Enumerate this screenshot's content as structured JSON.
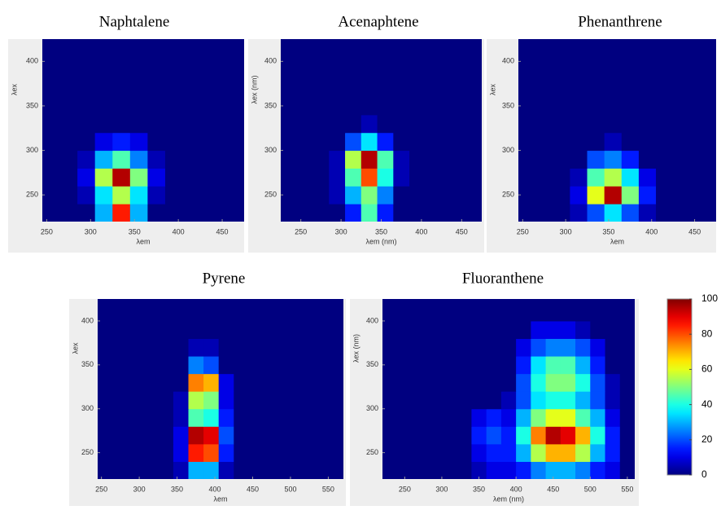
{
  "chart_data": [
    {
      "type": "heatmap",
      "title": "Naphtalene",
      "xlabel": "λem",
      "ylabel": "λex",
      "xlim": [
        245,
        475
      ],
      "ylim": [
        220,
        425
      ],
      "xticks": [
        250,
        300,
        350,
        400,
        450
      ],
      "yticks": [
        250,
        300,
        350,
        400
      ],
      "x": [
        255,
        275,
        295,
        315,
        335,
        355,
        375,
        395,
        415,
        435,
        455
      ],
      "y": [
        230,
        250,
        270,
        290,
        310,
        330,
        350,
        370,
        390,
        410
      ],
      "z": [
        [
          0,
          0,
          0,
          30,
          85,
          30,
          0,
          0,
          0,
          0,
          0
        ],
        [
          0,
          0,
          5,
          35,
          55,
          35,
          5,
          0,
          0,
          0,
          0
        ],
        [
          0,
          0,
          10,
          55,
          95,
          50,
          10,
          0,
          0,
          0,
          0
        ],
        [
          0,
          0,
          5,
          30,
          45,
          25,
          5,
          0,
          0,
          0,
          0
        ],
        [
          0,
          0,
          0,
          10,
          15,
          10,
          0,
          0,
          0,
          0,
          0
        ],
        [
          0,
          0,
          0,
          0,
          0,
          0,
          0,
          0,
          0,
          0,
          0
        ],
        [
          0,
          0,
          0,
          0,
          0,
          0,
          0,
          0,
          0,
          0,
          0
        ],
        [
          0,
          0,
          0,
          0,
          0,
          0,
          0,
          0,
          0,
          0,
          0
        ],
        [
          0,
          0,
          0,
          0,
          0,
          0,
          0,
          0,
          0,
          0,
          0
        ],
        [
          0,
          0,
          0,
          0,
          0,
          0,
          0,
          0,
          0,
          0,
          0
        ]
      ]
    },
    {
      "type": "heatmap",
      "title": "Acenaphtene",
      "xlabel": "λem (nm)",
      "ylabel": "λex (nm)",
      "xlim": [
        225,
        475
      ],
      "ylim": [
        220,
        425
      ],
      "xticks": [
        250,
        300,
        350,
        400,
        450
      ],
      "yticks": [
        250,
        300,
        350,
        400
      ],
      "x": [
        235,
        255,
        275,
        295,
        315,
        335,
        355,
        375,
        395,
        415,
        435,
        455
      ],
      "y": [
        230,
        250,
        270,
        290,
        310,
        330,
        350,
        370,
        390,
        410
      ],
      "z": [
        [
          0,
          0,
          0,
          0,
          15,
          45,
          15,
          0,
          0,
          0,
          0,
          0
        ],
        [
          0,
          0,
          0,
          5,
          30,
          50,
          25,
          0,
          0,
          0,
          0,
          0
        ],
        [
          0,
          0,
          0,
          5,
          45,
          80,
          40,
          5,
          0,
          0,
          0,
          0
        ],
        [
          0,
          0,
          0,
          5,
          55,
          95,
          45,
          5,
          0,
          0,
          0,
          0
        ],
        [
          0,
          0,
          0,
          0,
          20,
          35,
          15,
          0,
          0,
          0,
          0,
          0
        ],
        [
          0,
          0,
          0,
          0,
          0,
          5,
          0,
          0,
          0,
          0,
          0,
          0
        ],
        [
          0,
          0,
          0,
          0,
          0,
          0,
          0,
          0,
          0,
          0,
          0,
          0
        ],
        [
          0,
          0,
          0,
          0,
          0,
          0,
          0,
          0,
          0,
          0,
          0,
          0
        ],
        [
          0,
          0,
          0,
          0,
          0,
          0,
          0,
          0,
          0,
          0,
          0,
          0
        ],
        [
          0,
          0,
          0,
          0,
          0,
          0,
          0,
          0,
          0,
          0,
          0,
          0
        ]
      ]
    },
    {
      "type": "heatmap",
      "title": "Phenanthrene",
      "xlabel": "λem",
      "ylabel": "λex",
      "xlim": [
        245,
        475
      ],
      "ylim": [
        220,
        425
      ],
      "xticks": [
        250,
        300,
        350,
        400,
        450
      ],
      "yticks": [
        250,
        300,
        350,
        400
      ],
      "x": [
        255,
        275,
        295,
        315,
        335,
        355,
        375,
        395,
        415,
        435,
        455
      ],
      "y": [
        230,
        250,
        270,
        290,
        310,
        330,
        350,
        370,
        390,
        410
      ],
      "z": [
        [
          0,
          0,
          0,
          5,
          20,
          35,
          20,
          5,
          0,
          0,
          0
        ],
        [
          0,
          0,
          0,
          10,
          60,
          95,
          50,
          15,
          0,
          0,
          0
        ],
        [
          0,
          0,
          0,
          5,
          45,
          55,
          35,
          10,
          0,
          0,
          0
        ],
        [
          0,
          0,
          0,
          0,
          20,
          25,
          15,
          0,
          0,
          0,
          0
        ],
        [
          0,
          0,
          0,
          0,
          0,
          5,
          0,
          0,
          0,
          0,
          0
        ],
        [
          0,
          0,
          0,
          0,
          0,
          0,
          0,
          0,
          0,
          0,
          0
        ],
        [
          0,
          0,
          0,
          0,
          0,
          0,
          0,
          0,
          0,
          0,
          0
        ],
        [
          0,
          0,
          0,
          0,
          0,
          0,
          0,
          0,
          0,
          0,
          0
        ],
        [
          0,
          0,
          0,
          0,
          0,
          0,
          0,
          0,
          0,
          0,
          0
        ],
        [
          0,
          0,
          0,
          0,
          0,
          0,
          0,
          0,
          0,
          0,
          0
        ]
      ]
    },
    {
      "type": "heatmap",
      "title": "Pyrene",
      "xlabel": "λem",
      "ylabel": "λex",
      "xlim": [
        245,
        570
      ],
      "ylim": [
        220,
        425
      ],
      "xticks": [
        250,
        300,
        350,
        400,
        450,
        500,
        550
      ],
      "yticks": [
        250,
        300,
        350,
        400
      ],
      "x": [
        255,
        275,
        295,
        315,
        335,
        355,
        375,
        395,
        415,
        435,
        455,
        475,
        495,
        515,
        535,
        555
      ],
      "y": [
        230,
        250,
        270,
        290,
        310,
        330,
        350,
        370,
        390,
        410
      ],
      "z": [
        [
          0,
          0,
          0,
          0,
          0,
          5,
          30,
          30,
          5,
          0,
          0,
          0,
          0,
          0,
          0,
          0
        ],
        [
          0,
          0,
          0,
          0,
          0,
          10,
          85,
          80,
          15,
          0,
          0,
          0,
          0,
          0,
          0,
          0
        ],
        [
          0,
          0,
          0,
          0,
          0,
          10,
          95,
          90,
          20,
          0,
          0,
          0,
          0,
          0,
          0,
          0
        ],
        [
          0,
          0,
          0,
          0,
          0,
          5,
          45,
          40,
          15,
          0,
          0,
          0,
          0,
          0,
          0,
          0
        ],
        [
          0,
          0,
          0,
          0,
          0,
          5,
          55,
          50,
          10,
          0,
          0,
          0,
          0,
          0,
          0,
          0
        ],
        [
          0,
          0,
          0,
          0,
          0,
          0,
          75,
          70,
          10,
          0,
          0,
          0,
          0,
          0,
          0,
          0
        ],
        [
          0,
          0,
          0,
          0,
          0,
          0,
          25,
          20,
          0,
          0,
          0,
          0,
          0,
          0,
          0,
          0
        ],
        [
          0,
          0,
          0,
          0,
          0,
          0,
          5,
          5,
          0,
          0,
          0,
          0,
          0,
          0,
          0,
          0
        ],
        [
          0,
          0,
          0,
          0,
          0,
          0,
          0,
          0,
          0,
          0,
          0,
          0,
          0,
          0,
          0,
          0
        ],
        [
          0,
          0,
          0,
          0,
          0,
          0,
          0,
          0,
          0,
          0,
          0,
          0,
          0,
          0,
          0,
          0
        ]
      ]
    },
    {
      "type": "heatmap",
      "title": "Fluoranthene",
      "xlabel": "λem (nm)",
      "ylabel": "λex (nm)",
      "xlim": [
        220,
        560
      ],
      "ylim": [
        220,
        425
      ],
      "xticks": [
        250,
        300,
        350,
        400,
        450,
        500,
        550
      ],
      "yticks": [
        250,
        300,
        350,
        400
      ],
      "x": [
        230,
        250,
        270,
        290,
        310,
        330,
        350,
        370,
        390,
        410,
        430,
        450,
        470,
        490,
        510,
        530,
        550
      ],
      "y": [
        230,
        250,
        270,
        290,
        310,
        330,
        350,
        370,
        390,
        410
      ],
      "z": [
        [
          0,
          0,
          0,
          0,
          0,
          0,
          5,
          10,
          10,
          15,
          25,
          30,
          30,
          25,
          15,
          10,
          0
        ],
        [
          0,
          0,
          0,
          0,
          0,
          0,
          10,
          15,
          15,
          30,
          55,
          70,
          70,
          55,
          30,
          15,
          0
        ],
        [
          0,
          0,
          0,
          0,
          0,
          0,
          15,
          20,
          15,
          40,
          75,
          95,
          90,
          70,
          40,
          15,
          0
        ],
        [
          0,
          0,
          0,
          0,
          0,
          0,
          10,
          15,
          10,
          30,
          50,
          60,
          60,
          45,
          30,
          10,
          0
        ],
        [
          0,
          0,
          0,
          0,
          0,
          0,
          0,
          0,
          5,
          20,
          35,
          40,
          40,
          30,
          20,
          5,
          0
        ],
        [
          0,
          0,
          0,
          0,
          0,
          0,
          0,
          0,
          0,
          20,
          40,
          50,
          50,
          40,
          20,
          5,
          0
        ],
        [
          0,
          0,
          0,
          0,
          0,
          0,
          0,
          0,
          0,
          15,
          35,
          45,
          45,
          30,
          15,
          0,
          0
        ],
        [
          0,
          0,
          0,
          0,
          0,
          0,
          0,
          0,
          0,
          10,
          20,
          25,
          25,
          20,
          10,
          0,
          0
        ],
        [
          0,
          0,
          0,
          0,
          0,
          0,
          0,
          0,
          0,
          0,
          10,
          10,
          10,
          5,
          0,
          0,
          0
        ],
        [
          0,
          0,
          0,
          0,
          0,
          0,
          0,
          0,
          0,
          0,
          0,
          0,
          0,
          0,
          0,
          0,
          0
        ]
      ]
    }
  ],
  "colorbar": {
    "zlim": [
      0,
      100
    ],
    "zticks": [
      0,
      20,
      40,
      60,
      80,
      100
    ]
  }
}
